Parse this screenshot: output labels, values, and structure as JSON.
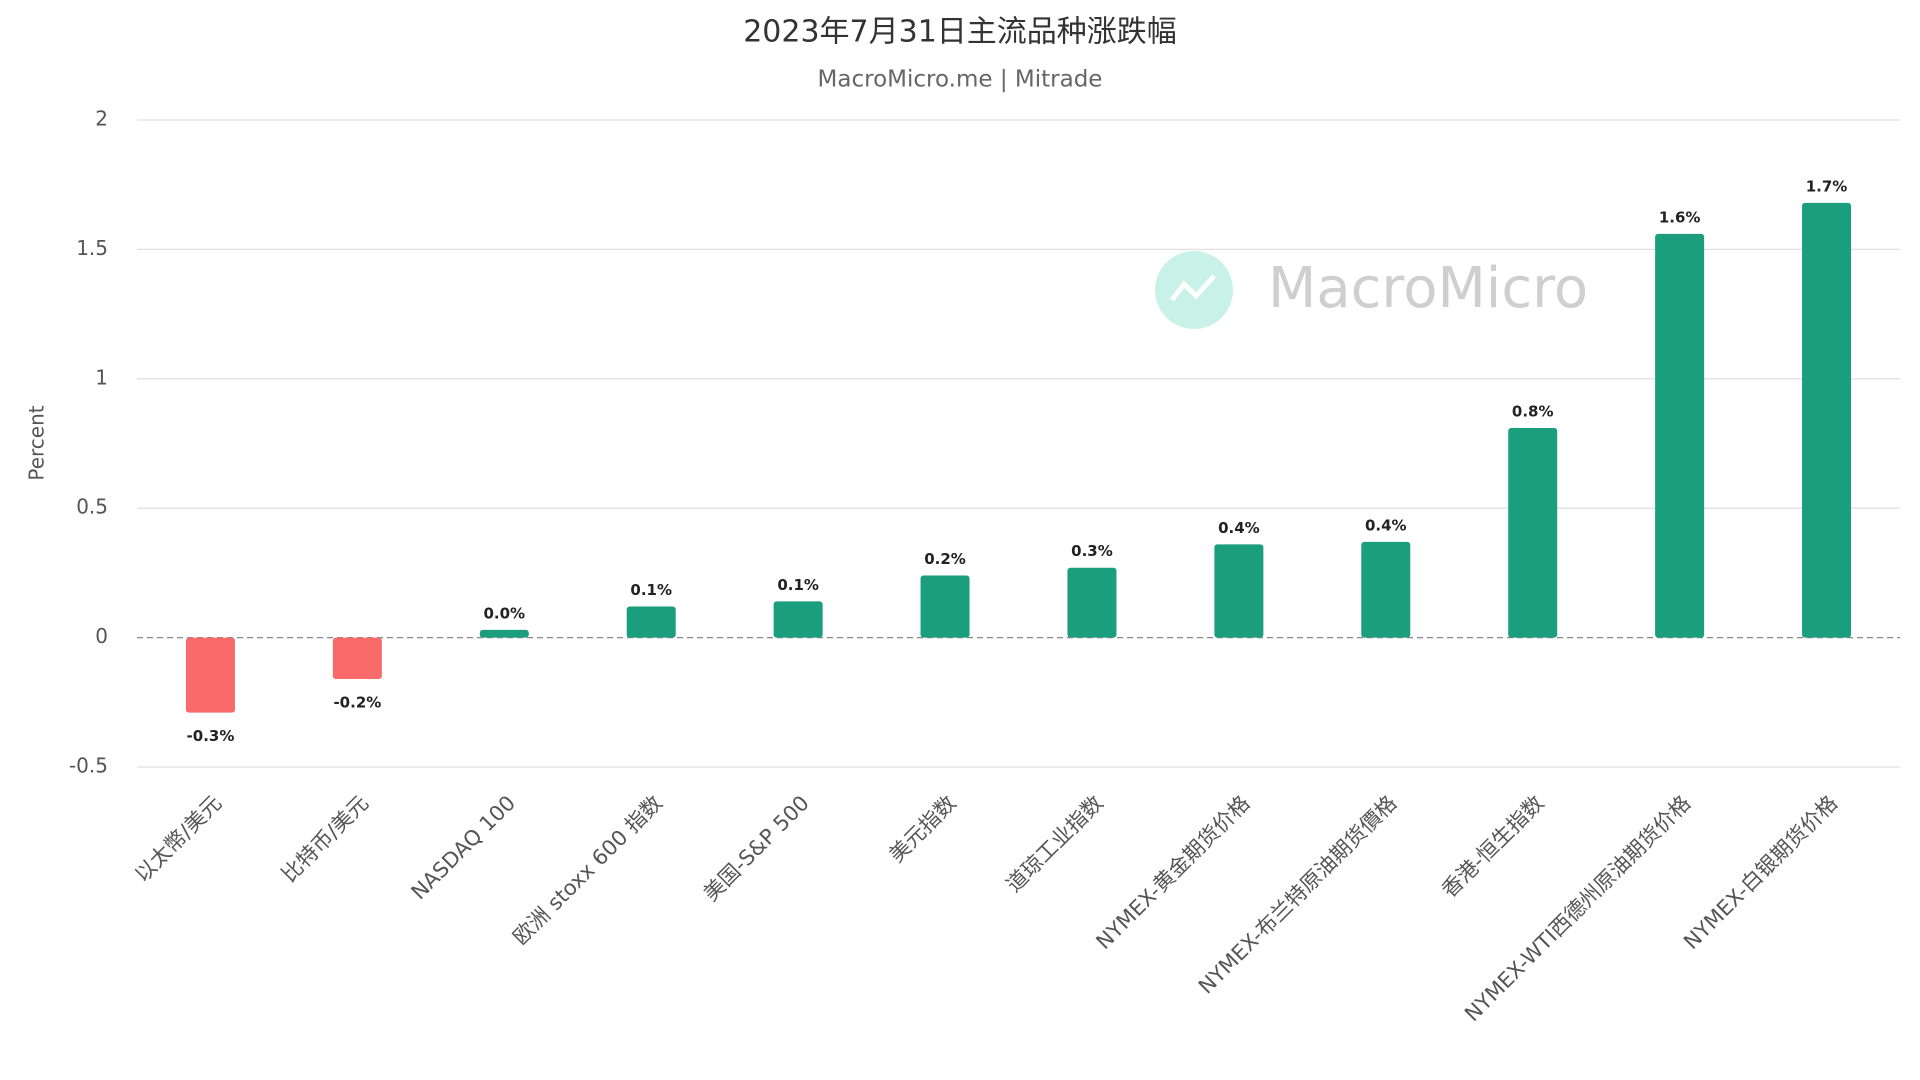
{
  "chart_data": {
    "type": "bar",
    "title": "2023年7月31日主流品种涨跌幅",
    "subtitle": "MacroMicro.me | Mitrade",
    "watermark": "MacroMicro",
    "y_label": "Percent",
    "categories": [
      "以太幣/美元",
      "比特币/美元",
      "NASDAQ 100",
      "欧洲 stoxx 600 指数",
      "美国-S&P 500",
      "美元指数",
      "道琼工业指数",
      "NYMEX-黄金期货价格",
      "NYMEX-布兰特原油期货價格",
      "香港-恒生指数",
      "NYMEX-WTI西德州原油期货价格",
      "NYMEX-白银期货价格"
    ],
    "values": [
      -0.29,
      -0.16,
      0.03,
      0.12,
      0.14,
      0.24,
      0.27,
      0.36,
      0.37,
      0.81,
      1.56,
      1.68
    ],
    "value_labels": [
      "-0.3%",
      "-0.2%",
      "0.0%",
      "0.1%",
      "0.1%",
      "0.2%",
      "0.3%",
      "0.4%",
      "0.4%",
      "0.8%",
      "1.6%",
      "1.7%"
    ],
    "color": "#1a9e7d",
    "negative_color": "#f96b6b",
    "ylim": [
      -0.5,
      2
    ],
    "yticks": [
      -0.5,
      0,
      0.5,
      1,
      1.5,
      2
    ],
    "grid": true
  }
}
